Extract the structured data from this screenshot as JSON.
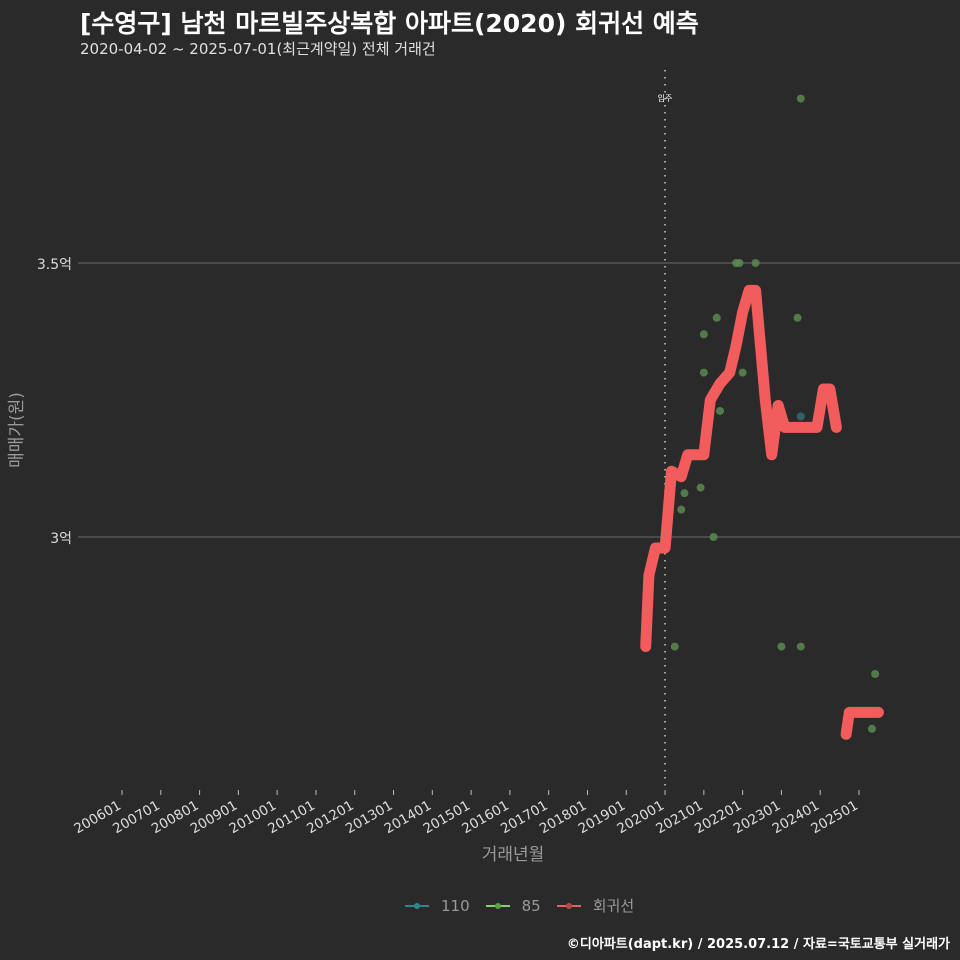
{
  "header": {
    "title": "[수영구] 남천 마르빌주상복합 아파트(2020) 회귀선 예측",
    "subtitle": "2020-04-02 ~ 2025-07-01(최근계약일) 전체 거래건"
  },
  "caption": "©디아파트(dapt.kr) / 2025.07.12 / 자료=국토교통부 실거래가",
  "legend": {
    "items": [
      {
        "label": "110",
        "color": "#2a8a8a"
      },
      {
        "label": "85",
        "color": "#7ed36a"
      },
      {
        "label": "회귀선",
        "color": "#f25c5c"
      }
    ]
  },
  "chart_data": {
    "type": "scatter",
    "title": "[수영구] 남천 마르빌주상복합 아파트(2020) 회귀선 예측",
    "subtitle": "2020-04-02 ~ 2025-07-01(최근계약일) 전체 거래건",
    "xlabel": "거래년월",
    "ylabel": "매매가(원)",
    "x_ticks": [
      "200601",
      "200701",
      "200801",
      "200901",
      "201001",
      "201101",
      "201201",
      "201301",
      "201401",
      "201501",
      "201601",
      "201701",
      "201801",
      "201901",
      "202001",
      "202101",
      "202201",
      "202301",
      "202401",
      "202501"
    ],
    "y_ticks": [
      {
        "label": "3억",
        "value": 300000000
      },
      {
        "label": "3.5억",
        "value": 350000000
      }
    ],
    "ylim": [
      261000000,
      383000000
    ],
    "grid": "horizontal major only",
    "legend_position": "bottom",
    "annotation": {
      "label": "입주",
      "x": "202001",
      "style": "dotted vertical line"
    },
    "series": [
      {
        "name": "85",
        "color": "#7ed36a",
        "points": [
          {
            "x": "2020.04",
            "y": 280000000
          },
          {
            "x": "2020.06",
            "y": 305000000
          },
          {
            "x": "2020.07",
            "y": 308000000
          },
          {
            "x": "2020.12",
            "y": 309000000
          },
          {
            "x": "2021.01",
            "y": 330000000
          },
          {
            "x": "2021.01",
            "y": 337000000
          },
          {
            "x": "2021.04",
            "y": 300000000
          },
          {
            "x": "2021.05",
            "y": 340000000
          },
          {
            "x": "2021.06",
            "y": 323000000
          },
          {
            "x": "2021.11",
            "y": 350000000
          },
          {
            "x": "2021.12",
            "y": 350000000
          },
          {
            "x": "2022.01",
            "y": 330000000
          },
          {
            "x": "2022.05",
            "y": 350000000
          },
          {
            "x": "2023.01",
            "y": 280000000
          },
          {
            "x": "2023.06",
            "y": 340000000
          },
          {
            "x": "2023.07",
            "y": 280000000
          },
          {
            "x": "2023.07",
            "y": 380000000
          },
          {
            "x": "2025.05",
            "y": 265000000
          },
          {
            "x": "2025.06",
            "y": 275000000
          }
        ]
      },
      {
        "name": "110",
        "color": "#2a8a8a",
        "points": [
          {
            "x": "2023.07",
            "y": 322000000
          }
        ]
      },
      {
        "name": "회귀선",
        "color": "#f25c5c",
        "type": "line",
        "points": [
          {
            "x": "2019.07",
            "y": 280000000
          },
          {
            "x": "2019.08",
            "y": 293000000
          },
          {
            "x": "2019.10",
            "y": 298000000
          },
          {
            "x": "2020.01",
            "y": 298000000
          },
          {
            "x": "2020.03",
            "y": 312000000
          },
          {
            "x": "2020.06",
            "y": 311000000
          },
          {
            "x": "2020.08",
            "y": 315000000
          },
          {
            "x": "2021.01",
            "y": 315000000
          },
          {
            "x": "2021.03",
            "y": 325000000
          },
          {
            "x": "2021.06",
            "y": 328000000
          },
          {
            "x": "2021.09",
            "y": 330000000
          },
          {
            "x": "2021.11",
            "y": 335000000
          },
          {
            "x": "2022.01",
            "y": 341000000
          },
          {
            "x": "2022.03",
            "y": 345000000
          },
          {
            "x": "2022.05",
            "y": 345000000
          },
          {
            "x": "2022.08",
            "y": 325000000
          },
          {
            "x": "2022.10",
            "y": 315000000
          },
          {
            "x": "2022.12",
            "y": 324000000
          },
          {
            "x": "2023.02",
            "y": 320000000
          },
          {
            "x": "2023.12",
            "y": 320000000
          },
          {
            "x": "2024.02",
            "y": 327000000
          },
          {
            "x": "2024.04",
            "y": 327000000
          },
          {
            "x": "2024.06",
            "y": 320000000
          },
          {
            "x": "2024.09",
            "y": 264000000
          },
          {
            "x": "2024.10",
            "y": 268000000
          },
          {
            "x": "2025.07",
            "y": 268000000
          }
        ]
      }
    ]
  }
}
